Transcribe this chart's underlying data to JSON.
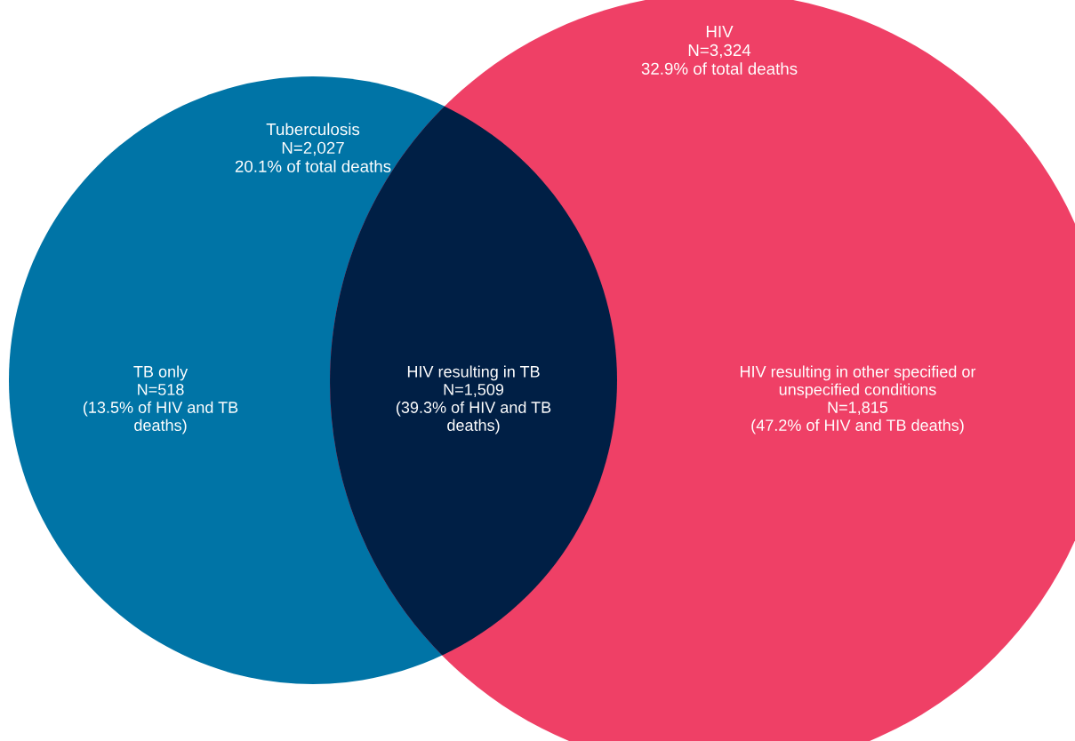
{
  "chart_data": {
    "type": "other",
    "categories": [
      "TB only",
      "HIV resulting in TB",
      "HIV resulting in other specified or\nunspecified conditions"
    ],
    "values": [
      518,
      1509,
      1815
    ],
    "value_labels": [
      "N=518\n(13.5% of HIV and TB\ndeaths)",
      "N=1,509\n(39.3% of HIV and TB\ndeaths)",
      "N=1,815\n(47.2% of HIV and TB deaths)"
    ],
    "colors": [
      "#0074a6",
      "#001f45",
      "#ef4066"
    ],
    "annotations": [
      "Tuberculosis\nN=2,027\n20.1% of total deaths",
      "HIV\nN=3,324\n32.9% of total deaths"
    ]
  }
}
